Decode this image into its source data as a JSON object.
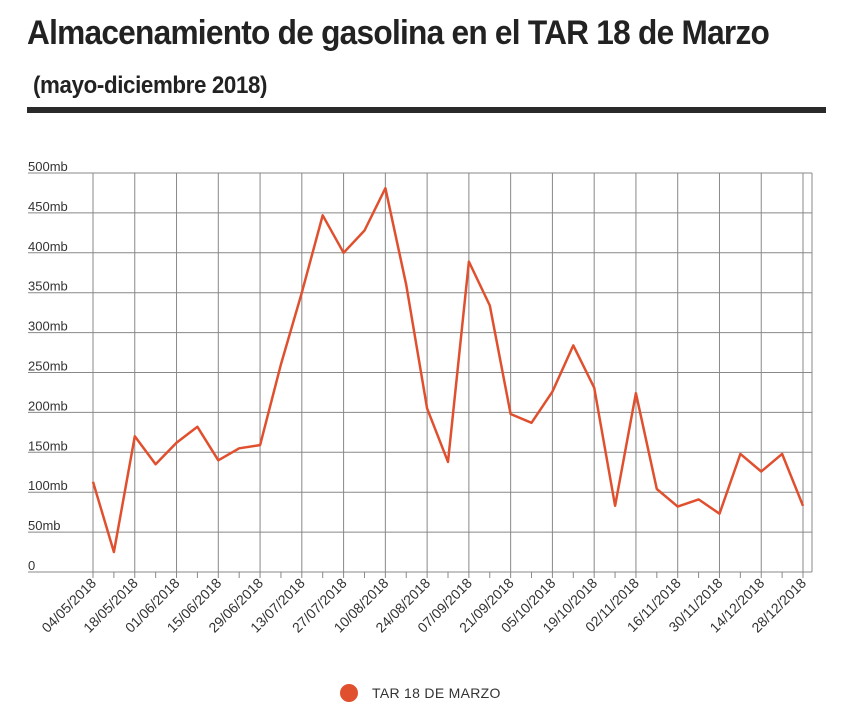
{
  "header": {
    "title": "Almacenamiento de gasolina en el TAR 18 de Marzo",
    "subtitle": "(mayo-diciembre 2018)"
  },
  "colors": {
    "series": "#e0502f",
    "grid": "#888888",
    "text": "#333333"
  },
  "chart_data": {
    "type": "line",
    "title": "Almacenamiento de gasolina en el TAR 18 de Marzo",
    "subtitle": "(mayo-diciembre 2018)",
    "ylim": [
      0,
      500
    ],
    "y_ticks": [
      "0",
      "50mb",
      "100mb",
      "150mb",
      "200mb",
      "250mb",
      "300mb",
      "350mb",
      "400mb",
      "450mb",
      "500mb"
    ],
    "x_tick_labels": [
      "04/05/2018",
      "18/05/2018",
      "01/06/2018",
      "15/06/2018",
      "29/06/2018",
      "13/07/2018",
      "27/07/2018",
      "10/08/2018",
      "24/08/2018",
      "07/09/2018",
      "21/09/2018",
      "05/10/2018",
      "19/10/2018",
      "02/11/2018",
      "16/11/2018",
      "30/11/2018",
      "14/12/2018",
      "28/12/2018"
    ],
    "x": [
      "04/05/2018",
      "11/05/2018",
      "18/05/2018",
      "25/05/2018",
      "01/06/2018",
      "08/06/2018",
      "15/06/2018",
      "22/06/2018",
      "29/06/2018",
      "06/07/2018",
      "13/07/2018",
      "20/07/2018",
      "27/07/2018",
      "03/08/2018",
      "10/08/2018",
      "17/08/2018",
      "24/08/2018",
      "31/08/2018",
      "07/09/2018",
      "14/09/2018",
      "21/09/2018",
      "28/09/2018",
      "05/10/2018",
      "12/10/2018",
      "19/10/2018",
      "26/10/2018",
      "02/11/2018",
      "09/11/2018",
      "16/11/2018",
      "23/11/2018",
      "30/11/2018",
      "07/12/2018",
      "14/12/2018",
      "21/12/2018",
      "28/12/2018"
    ],
    "grid": true,
    "legend_position": "bottom-center",
    "series": [
      {
        "name": "TAR 18 DE MARZO",
        "values": [
          113,
          25,
          170,
          135,
          162,
          182,
          140,
          155,
          159,
          260,
          350,
          447,
          400,
          428,
          481,
          360,
          205,
          138,
          389,
          334,
          198,
          187,
          226,
          284,
          231,
          83,
          224,
          104,
          82,
          91,
          73,
          148,
          126,
          148,
          83
        ]
      }
    ]
  }
}
